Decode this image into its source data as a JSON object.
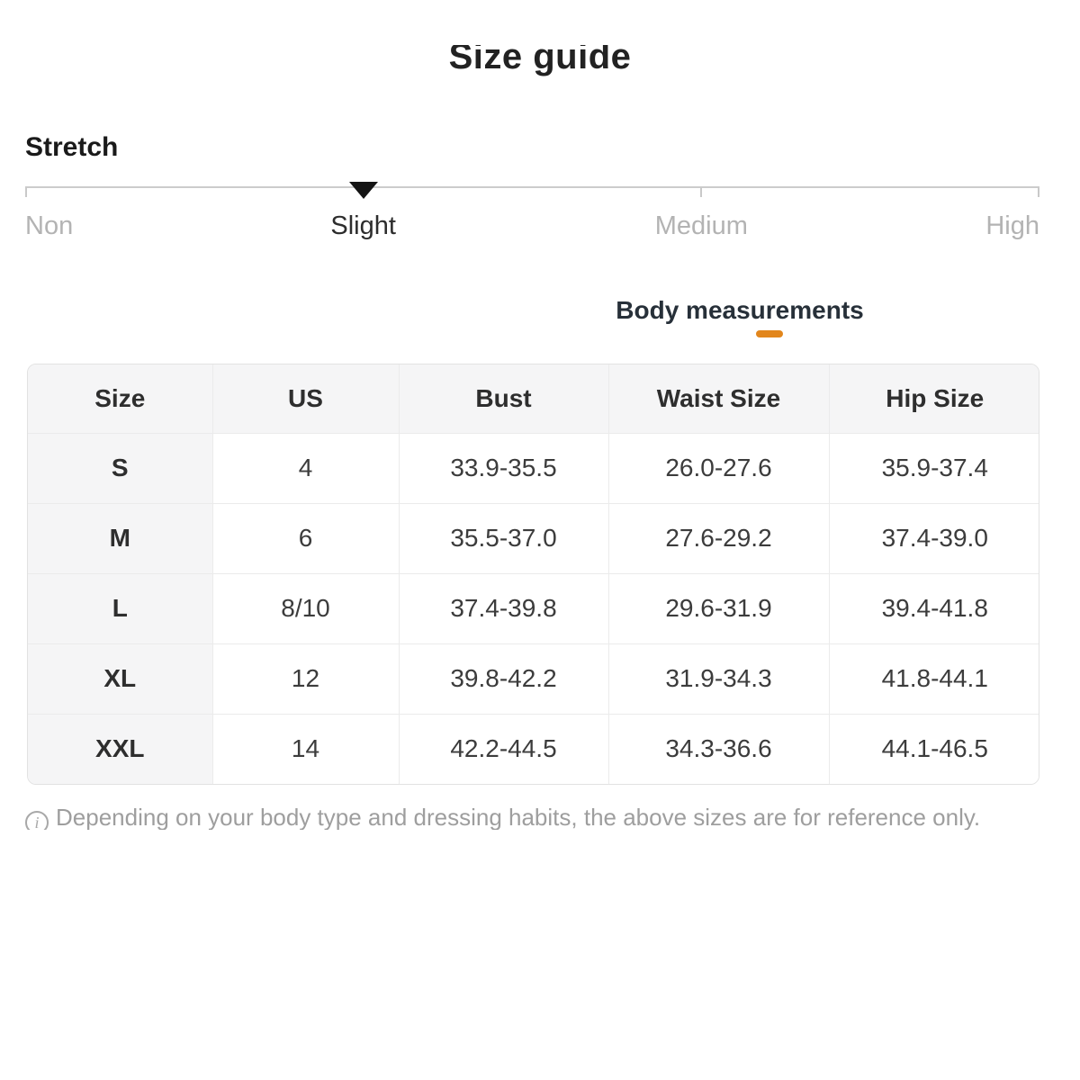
{
  "title": "Size guide",
  "accent_color": "#E2861C",
  "stretch": {
    "label": "Stretch",
    "selected": "Slight",
    "options": [
      {
        "label": "Non"
      },
      {
        "label": "Slight"
      },
      {
        "label": "Medium"
      },
      {
        "label": "High"
      }
    ]
  },
  "tabs": {
    "body_measurements": "Body measurements"
  },
  "table": {
    "columns": [
      "Size",
      "US",
      "Bust",
      "Waist Size",
      "Hip Size"
    ],
    "rows": [
      [
        "S",
        "4",
        "33.9-35.5",
        "26.0-27.6",
        "35.9-37.4"
      ],
      [
        "M",
        "6",
        "35.5-37.0",
        "27.6-29.2",
        "37.4-39.0"
      ],
      [
        "L",
        "8/10",
        "37.4-39.8",
        "29.6-31.9",
        "39.4-41.8"
      ],
      [
        "XL",
        "12",
        "39.8-42.2",
        "31.9-34.3",
        "41.8-44.1"
      ],
      [
        "XXL",
        "14",
        "42.2-44.5",
        "34.3-36.6",
        "44.1-46.5"
      ]
    ]
  },
  "note": {
    "icon": "info-icon",
    "icon_glyph": "i",
    "text": "Depending on your body type and dressing habits, the above sizes are for reference only."
  }
}
